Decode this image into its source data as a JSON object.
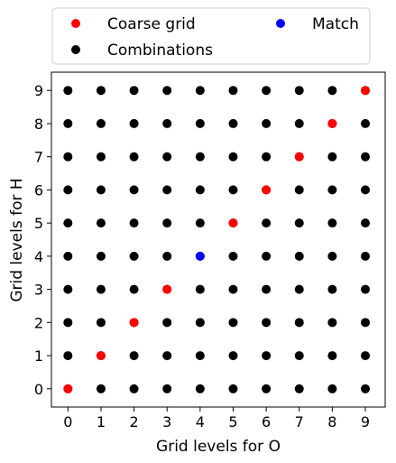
{
  "chart_data": {
    "type": "scatter",
    "xlabel": "Grid levels for O",
    "ylabel": "Grid levels for H",
    "xlim": [
      -0.5,
      9.6
    ],
    "ylim": [
      -0.55,
      9.55
    ],
    "xticks": [
      "0",
      "1",
      "2",
      "3",
      "4",
      "5",
      "6",
      "7",
      "8",
      "9"
    ],
    "yticks": [
      "0",
      "1",
      "2",
      "3",
      "4",
      "5",
      "6",
      "7",
      "8",
      "9"
    ],
    "grid": false,
    "legend_position": "above plot",
    "legend_columns": 2,
    "series": [
      {
        "name": "Combinations",
        "color": "#000000",
        "points": "all integer pairs (x, y) with x in 0..9 and y in 0..9",
        "x_values": [
          0,
          1,
          2,
          3,
          4,
          5,
          6,
          7,
          8,
          9
        ],
        "y_values": [
          0,
          1,
          2,
          3,
          4,
          5,
          6,
          7,
          8,
          9
        ]
      },
      {
        "name": "Coarse grid",
        "color": "#ff0000",
        "x": [
          0,
          1,
          2,
          3,
          5,
          6,
          7,
          8,
          9
        ],
        "y": [
          0,
          1,
          2,
          3,
          5,
          6,
          7,
          8,
          9
        ]
      },
      {
        "name": "Match",
        "color": "#0000ff",
        "x": [
          4
        ],
        "y": [
          4
        ]
      }
    ],
    "legend": [
      {
        "label": "Coarse grid",
        "color": "#ff0000"
      },
      {
        "label": "Match",
        "color": "#0000ff"
      },
      {
        "label": "Combinations",
        "color": "#000000"
      }
    ]
  }
}
